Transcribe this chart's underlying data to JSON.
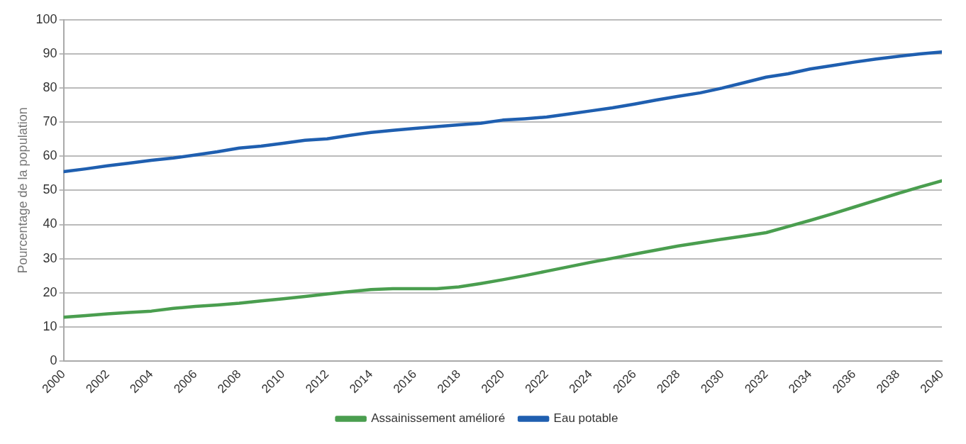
{
  "chart_data": {
    "type": "line",
    "ylabel": "Pourcentage de la population",
    "x": [
      2000,
      2001,
      2002,
      2003,
      2004,
      2005,
      2006,
      2007,
      2008,
      2009,
      2010,
      2011,
      2012,
      2013,
      2014,
      2015,
      2016,
      2017,
      2018,
      2019,
      2020,
      2021,
      2022,
      2023,
      2024,
      2025,
      2026,
      2027,
      2028,
      2029,
      2030,
      2031,
      2032,
      2033,
      2034,
      2035,
      2036,
      2037,
      2038,
      2039,
      2040
    ],
    "series": [
      {
        "name": "Assainissement amélioré",
        "color": "#4a9e4f",
        "values": [
          12.8,
          13.3,
          13.8,
          14.2,
          14.6,
          15.4,
          16,
          16.4,
          16.9,
          17.6,
          18.2,
          18.9,
          19.6,
          20.3,
          20.9,
          21.2,
          21.2,
          21.2,
          21.7,
          22.7,
          23.8,
          25,
          26.3,
          27.6,
          28.9,
          30.1,
          31.3,
          32.5,
          33.7,
          34.7,
          35.7,
          36.6,
          37.6,
          39.4,
          41.2,
          43.1,
          45.1,
          47.1,
          49.1,
          51,
          52.8
        ]
      },
      {
        "name": "Eau potable",
        "color": "#1f5fb0",
        "values": [
          55.5,
          56.3,
          57.2,
          58,
          58.8,
          59.5,
          60.4,
          61.3,
          62.4,
          63,
          63.8,
          64.7,
          65.1,
          66.1,
          67,
          67.6,
          68.2,
          68.7,
          69.2,
          69.7,
          70.6,
          71,
          71.5,
          72.4,
          73.3,
          74.2,
          75.3,
          76.5,
          77.6,
          78.6,
          80,
          81.6,
          83.2,
          84.2,
          85.6,
          86.6,
          87.6,
          88.5,
          89.3,
          90,
          90.6
        ]
      }
    ],
    "xlim": [
      2000,
      2040
    ],
    "xticks": [
      2000,
      2002,
      2004,
      2006,
      2008,
      2010,
      2012,
      2014,
      2016,
      2018,
      2020,
      2022,
      2024,
      2026,
      2028,
      2030,
      2032,
      2034,
      2036,
      2038,
      2040
    ],
    "ylim": [
      0,
      100
    ],
    "yticks": [
      0,
      10,
      20,
      30,
      40,
      50,
      60,
      70,
      80,
      90,
      100
    ],
    "grid": "y",
    "legend": "bottom",
    "marker": "none",
    "line_style": "solid"
  }
}
